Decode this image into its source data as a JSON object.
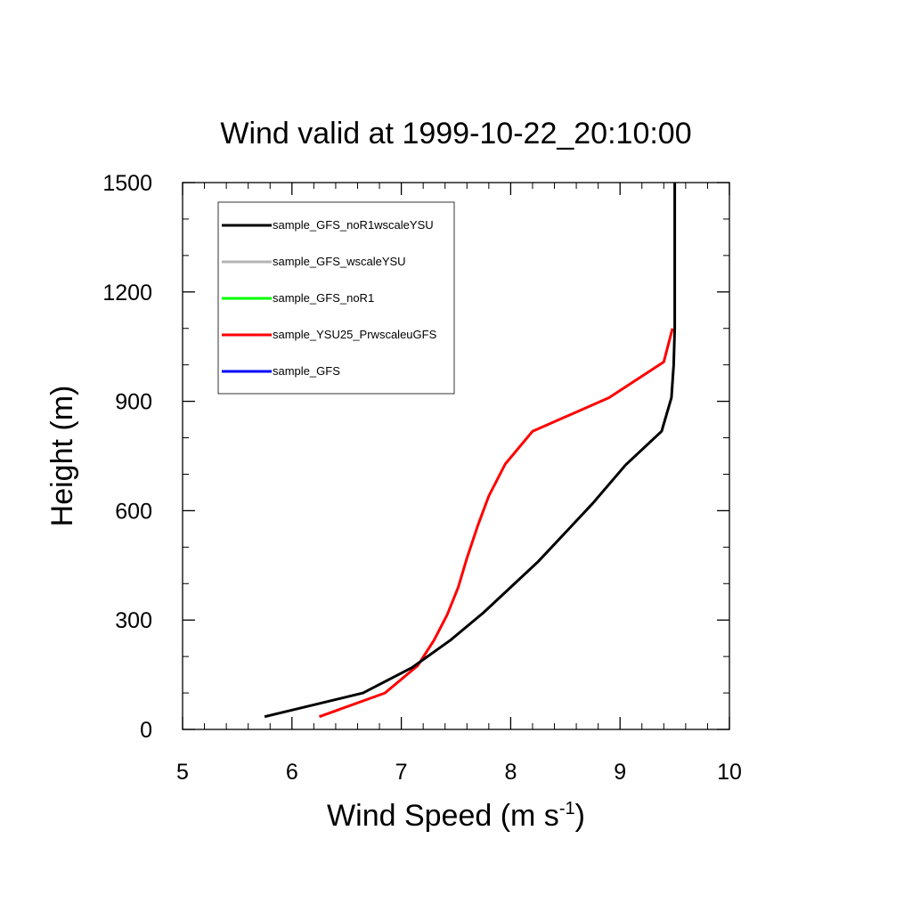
{
  "chart_data": {
    "type": "line",
    "title": "Wind valid at 1999-10-22_20:10:00",
    "xlabel": "Wind Speed (m s",
    "xlabel_superscript": "-1",
    "xlabel_suffix": ")",
    "ylabel": "Height (m)",
    "xlim": [
      5,
      10
    ],
    "ylim": [
      0,
      1500
    ],
    "x_ticks": [
      5,
      6,
      7,
      8,
      9,
      10
    ],
    "y_ticks": [
      0,
      300,
      600,
      900,
      1200,
      1500
    ],
    "legend_position": "top-left",
    "series": [
      {
        "name": "sample_GFS",
        "color": "#0000ff",
        "points": []
      },
      {
        "name": "sample_YSU25_PrwscaleuGFS",
        "color": "#ff0000",
        "points": [
          [
            6.25,
            35
          ],
          [
            6.85,
            100
          ],
          [
            7.15,
            175
          ],
          [
            7.3,
            245
          ],
          [
            7.42,
            315
          ],
          [
            7.52,
            390
          ],
          [
            7.6,
            470
          ],
          [
            7.7,
            560
          ],
          [
            7.8,
            640
          ],
          [
            7.95,
            728
          ],
          [
            8.2,
            818
          ],
          [
            8.9,
            910
          ],
          [
            9.4,
            1008
          ],
          [
            9.48,
            1100
          ]
        ]
      },
      {
        "name": "sample_GFS_noR1",
        "color": "#00ff00",
        "points": []
      },
      {
        "name": "sample_GFS_wscaleYSU",
        "color": "#b4b4b4",
        "points": []
      },
      {
        "name": "sample_GFS_noR1wscaleYSU",
        "color": "#000000",
        "points": [
          [
            5.75,
            35
          ],
          [
            6.65,
            100
          ],
          [
            7.1,
            170
          ],
          [
            7.45,
            245
          ],
          [
            7.75,
            320
          ],
          [
            8.0,
            390
          ],
          [
            8.25,
            460
          ],
          [
            8.5,
            540
          ],
          [
            8.75,
            620
          ],
          [
            9.05,
            725
          ],
          [
            9.38,
            818
          ],
          [
            9.47,
            910
          ],
          [
            9.49,
            1000
          ],
          [
            9.5,
            1100
          ],
          [
            9.5,
            1200
          ],
          [
            9.5,
            1300
          ],
          [
            9.5,
            1400
          ],
          [
            9.5,
            1500
          ]
        ]
      }
    ],
    "legend_order": [
      "sample_GFS_noR1wscaleYSU",
      "sample_GFS_wscaleYSU",
      "sample_GFS_noR1",
      "sample_YSU25_PrwscaleuGFS",
      "sample_GFS"
    ]
  }
}
